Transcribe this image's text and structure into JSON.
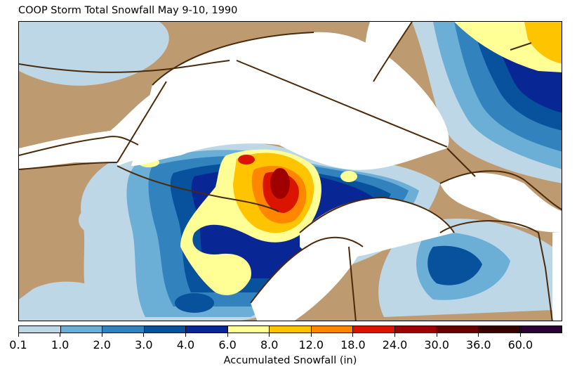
{
  "title": "COOP Storm Total Snowfall May 9-10, 1990",
  "colorbar": {
    "label": "Accumulated Snowfall (in)",
    "ticks": [
      "0.1",
      "1.0",
      "2.0",
      "3.0",
      "4.0",
      "6.0",
      "8.0",
      "12.0",
      "18.0",
      "24.0",
      "30.0",
      "36.0",
      "60.0"
    ],
    "colors": [
      "#bdd7e7",
      "#6baed6",
      "#3182bd",
      "#08519c",
      "#082694",
      "#ffff96",
      "#ffc400",
      "#ff8700",
      "#db1400",
      "#9e0000",
      "#690000",
      "#360000",
      "#2b0033"
    ]
  },
  "map": {
    "land_color": "#bd9a6f",
    "water_color": "#ffffff",
    "border_color": "#4a2a0a"
  }
}
